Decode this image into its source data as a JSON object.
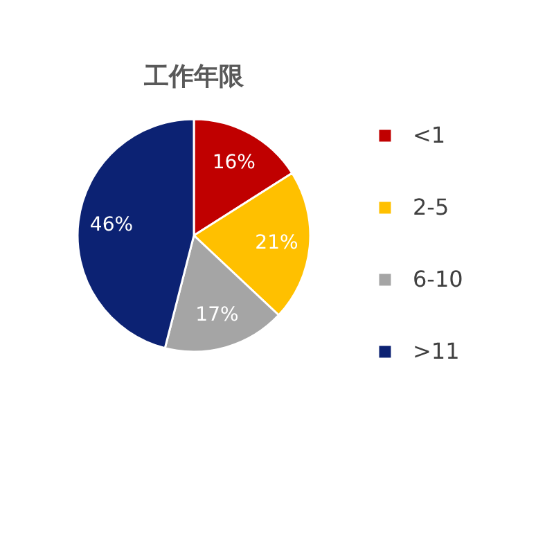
{
  "chart_data": {
    "type": "pie",
    "title": "工作年限",
    "categories": [
      "<1",
      "2-5",
      "6-10",
      ">11"
    ],
    "values": [
      16,
      21,
      17,
      46
    ],
    "colors": [
      "#c00000",
      "#ffc000",
      "#a5a5a5",
      "#0c2273"
    ],
    "value_labels": [
      "16%",
      "21%",
      "17%",
      "46%"
    ],
    "legend": "right"
  }
}
